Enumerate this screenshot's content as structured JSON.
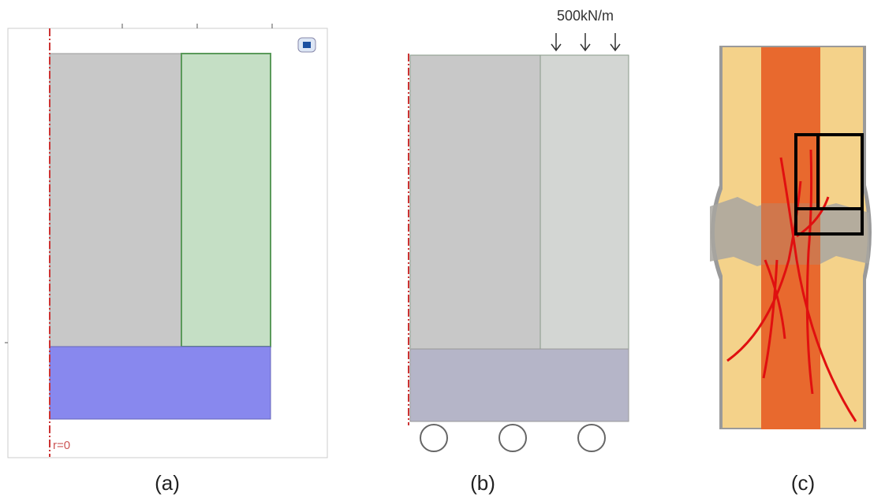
{
  "panels": [
    {
      "label": "(a)",
      "axis_label": "r=0"
    },
    {
      "label": "(b)",
      "load_label": "500kN/m"
    },
    {
      "label": "(c)"
    }
  ]
}
